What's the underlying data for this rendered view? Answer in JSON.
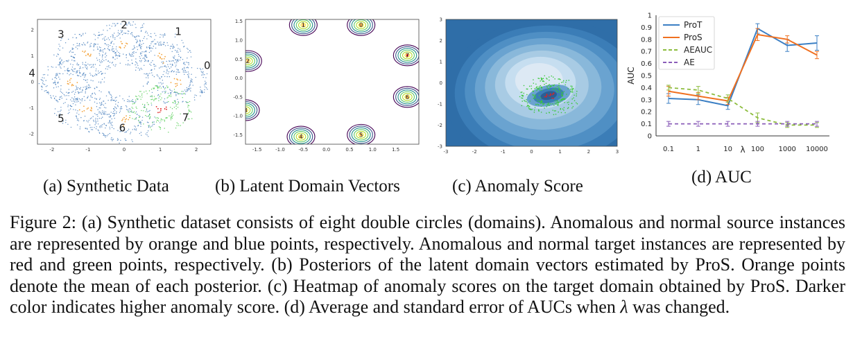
{
  "panels": {
    "a": {
      "label": "(a) Synthetic Data",
      "domain_labels": [
        "0",
        "1",
        "2",
        "3",
        "4",
        "5",
        "6",
        "7"
      ],
      "x_ticks": [
        "-2",
        "-1",
        "0",
        "1",
        "2"
      ],
      "y_ticks": [
        "2",
        "1",
        "0",
        "-1",
        "-2"
      ]
    },
    "b": {
      "label": "(b) Latent Domain Vectors",
      "domain_labels": [
        "0",
        "1",
        "2",
        "3",
        "4",
        "5",
        "6",
        "7"
      ],
      "x_ticks": [
        "-1.5",
        "-1.0",
        "-0.5",
        "0.0",
        "0.5",
        "1.0",
        "1.5"
      ],
      "y_ticks": [
        "1.5",
        "1.0",
        "0.5",
        "0.0",
        "-0.5",
        "-1.0",
        "-1.5"
      ]
    },
    "c": {
      "label": "(c) Anomaly Score",
      "x_ticks": [
        "-3",
        "-2",
        "-1",
        "0",
        "1",
        "2",
        "3"
      ],
      "y_ticks": [
        "3",
        "2",
        "1",
        "0",
        "-1",
        "-2",
        "-3"
      ]
    },
    "d": {
      "label": "(d) AUC"
    }
  },
  "colors": {
    "source_normal": "#3a76b8",
    "source_anomaly": "#f3a23a",
    "target_normal": "#3cc83c",
    "target_anomaly": "#e02020",
    "prot": "#3b7fc4",
    "pros": "#f07020",
    "aeauc": "#8cbc3c",
    "ae": "#8a5cb8"
  },
  "chart_data": {
    "type": "line",
    "ylabel": "AUC",
    "xlabel": "λ",
    "categories": [
      "0.1",
      "1",
      "10",
      "100",
      "1000",
      "10000"
    ],
    "y_ticks": [
      "0",
      "0.1",
      "0.2",
      "0.3",
      "0.4",
      "0.5",
      "0.6",
      "0.7",
      "0.8",
      "0.9",
      "1"
    ],
    "ylim": [
      0,
      1
    ],
    "legend_position": "top-left",
    "series": [
      {
        "name": "ProT",
        "values": [
          0.31,
          0.3,
          0.25,
          0.89,
          0.75,
          0.77
        ],
        "err": [
          0.04,
          0.04,
          0.03,
          0.04,
          0.05,
          0.06
        ],
        "style": "solid"
      },
      {
        "name": "ProS",
        "values": [
          0.37,
          0.33,
          0.29,
          0.84,
          0.8,
          0.67
        ],
        "err": [
          0.04,
          0.03,
          0.03,
          0.05,
          0.03,
          0.03
        ],
        "style": "solid"
      },
      {
        "name": "AEAUC",
        "values": [
          0.4,
          0.38,
          0.31,
          0.15,
          0.09,
          0.09
        ],
        "err": [
          0.02,
          0.03,
          0.03,
          0.04,
          0.02,
          0.02
        ],
        "style": "dashed"
      },
      {
        "name": "AE",
        "values": [
          0.1,
          0.1,
          0.1,
          0.1,
          0.1,
          0.1
        ],
        "err": [
          0.02,
          0.02,
          0.02,
          0.02,
          0.02,
          0.02
        ],
        "style": "dashed"
      }
    ]
  },
  "caption": {
    "p1": "Figure 2: (a) Synthetic dataset consists of eight double circles (domains). Anomalous and normal source instances are represented by orange and blue points, respectively. Anomalous and normal target instances are represented by red and green points, respectively. (b) Posteriors of the latent domain vectors estimated by ProS. Orange points denote the mean of each posterior. (c) Heatmap of anomaly scores on the target domain obtained by ProS. Darker color indicates higher anomaly score. (d) Average and standard error of AUCs when ",
    "lambda": "λ",
    "p2": " was changed."
  }
}
